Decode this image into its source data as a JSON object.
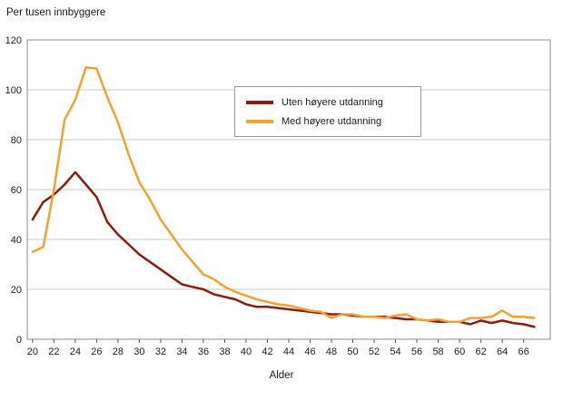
{
  "title": "Per tusen innbyggere",
  "chart_data": {
    "type": "line",
    "title": "Per tusen innbyggere",
    "xlabel": "Alder",
    "ylabel": "",
    "ylim": [
      0,
      120
    ],
    "yticks": [
      0,
      20,
      40,
      60,
      80,
      100,
      120
    ],
    "xticks": [
      20,
      22,
      24,
      26,
      28,
      30,
      32,
      34,
      36,
      38,
      40,
      42,
      44,
      46,
      48,
      50,
      52,
      54,
      56,
      58,
      60,
      62,
      64,
      66
    ],
    "grid": true,
    "legend_position": "upper-center",
    "x": [
      20,
      21,
      22,
      23,
      24,
      25,
      26,
      27,
      28,
      29,
      30,
      31,
      32,
      33,
      34,
      35,
      36,
      37,
      38,
      39,
      40,
      41,
      42,
      43,
      44,
      45,
      46,
      47,
      48,
      49,
      50,
      51,
      52,
      53,
      54,
      55,
      56,
      57,
      58,
      59,
      60,
      61,
      62,
      63,
      64,
      65,
      66,
      67
    ],
    "series": [
      {
        "name": "Uten høyere utdanning",
        "color": "#8e1b0c",
        "values": [
          48,
          55,
          58,
          62,
          67,
          62,
          57,
          47,
          42,
          38,
          34,
          31,
          28,
          25,
          22,
          21,
          20,
          18,
          17,
          16,
          14,
          13,
          13,
          12.5,
          12,
          11.5,
          11,
          10.5,
          10,
          10,
          9.5,
          9,
          9,
          9,
          8.5,
          8,
          8,
          7.5,
          7,
          7,
          7,
          6,
          7.5,
          6.5,
          7.5,
          6.5,
          6,
          5
        ]
      },
      {
        "name": "Med høyere utdanning",
        "color": "#f5a12e",
        "values": [
          35,
          37,
          60,
          88,
          96,
          109,
          108.5,
          97,
          87,
          74,
          63,
          56,
          48,
          42,
          36,
          31,
          26,
          24,
          21,
          19,
          17.5,
          16,
          15,
          14,
          13.5,
          12.5,
          11.5,
          11,
          8.5,
          10,
          10,
          9,
          9,
          8.5,
          9.5,
          10,
          8,
          7.5,
          8,
          7,
          7,
          8.5,
          8.5,
          9,
          11.5,
          9,
          9,
          8.5
        ]
      }
    ]
  }
}
